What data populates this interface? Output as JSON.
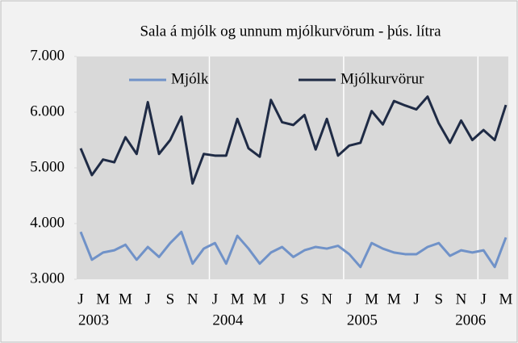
{
  "chart_data": {
    "type": "line",
    "title": "Sala á mjólk og unnum mjólkurvörum - þús. lítra",
    "categories": [
      "J",
      null,
      "M",
      null,
      "M",
      null,
      "J",
      null,
      "S",
      null,
      "N",
      null,
      "J",
      null,
      "M",
      null,
      "M",
      null,
      "J",
      null,
      "S",
      null,
      "N",
      null,
      "J",
      null,
      "M",
      null,
      "M",
      null,
      "J",
      null,
      "S",
      null,
      "N",
      null,
      "J",
      null,
      "M"
    ],
    "year_labels": [
      "2003",
      "2004",
      "2005",
      "2006"
    ],
    "series": [
      {
        "name": "Mjólk",
        "color": "#7092c8",
        "values": [
          3.85,
          3.35,
          3.48,
          3.52,
          3.62,
          3.35,
          3.58,
          3.4,
          3.65,
          3.85,
          3.28,
          3.55,
          3.65,
          3.28,
          3.78,
          3.55,
          3.28,
          3.48,
          3.58,
          3.4,
          3.52,
          3.58,
          3.55,
          3.6,
          3.45,
          3.22,
          3.65,
          3.55,
          3.48,
          3.45,
          3.45,
          3.58,
          3.65,
          3.42,
          3.52,
          3.48,
          3.52,
          3.22,
          3.75
        ]
      },
      {
        "name": "Mjólkurvörur",
        "color": "#1f2b45",
        "values": [
          5.35,
          4.87,
          5.15,
          5.1,
          5.55,
          5.25,
          6.18,
          5.25,
          5.5,
          5.92,
          4.72,
          5.25,
          5.22,
          5.22,
          5.88,
          5.35,
          5.2,
          6.22,
          5.82,
          5.77,
          5.95,
          5.33,
          5.88,
          5.22,
          5.4,
          5.45,
          6.02,
          5.78,
          6.2,
          6.12,
          6.05,
          6.28,
          5.8,
          5.45,
          5.85,
          5.5,
          5.68,
          5.5,
          6.13
        ]
      }
    ],
    "ylim": [
      3,
      7
    ],
    "yticks": [
      {
        "value": 3,
        "label": "3.000"
      },
      {
        "value": 4,
        "label": "4.000"
      },
      {
        "value": 5,
        "label": "5.000"
      },
      {
        "value": 6,
        "label": "6.000"
      },
      {
        "value": 7,
        "label": "7.000"
      }
    ],
    "legend": "top"
  }
}
